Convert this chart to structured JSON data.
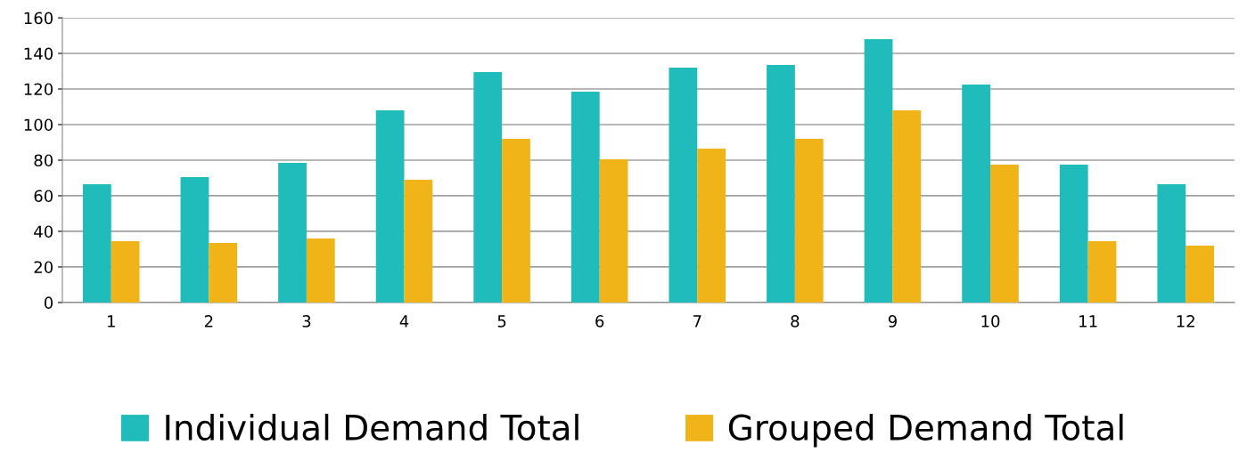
{
  "chart_data": {
    "type": "bar",
    "categories": [
      "1",
      "2",
      "3",
      "4",
      "5",
      "6",
      "7",
      "8",
      "9",
      "10",
      "11",
      "12"
    ],
    "series": [
      {
        "name": "Individual Demand Total",
        "color": "#20bbbb",
        "values": [
          66.5,
          70.5,
          78.5,
          108,
          129.5,
          118.5,
          132,
          133.5,
          148,
          122.5,
          77.5,
          66.5
        ]
      },
      {
        "name": "Grouped Demand Total",
        "color": "#f0b418",
        "values": [
          34.5,
          33.5,
          36,
          69,
          92,
          80.5,
          86.5,
          92,
          108,
          77.5,
          34.5,
          32
        ]
      }
    ],
    "ylim": [
      0,
      160
    ],
    "yticks": [
      0,
      20,
      40,
      60,
      80,
      100,
      120,
      140,
      160
    ],
    "grid": "y",
    "legend": "bottom"
  }
}
